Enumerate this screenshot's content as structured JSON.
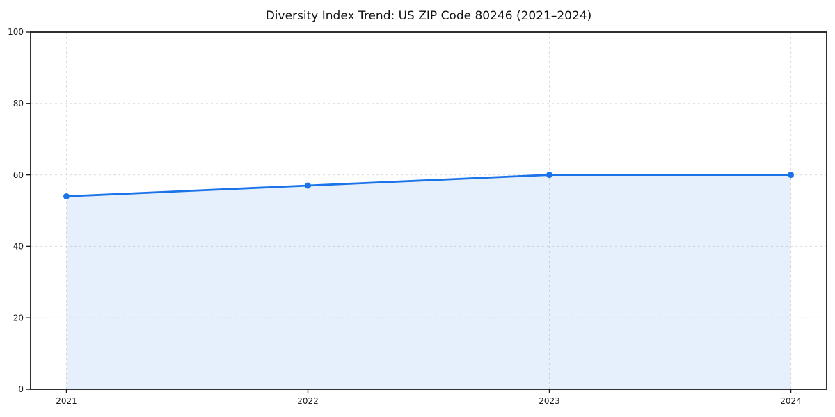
{
  "chart_data": {
    "type": "area",
    "title": "Diversity Index Trend: US ZIP Code 80246 (2021–2024)",
    "xlabel": "",
    "ylabel": "",
    "categories": [
      "2021",
      "2022",
      "2023",
      "2024"
    ],
    "series": [
      {
        "name": "Diversity Index",
        "values": [
          54,
          57,
          60,
          60
        ]
      }
    ],
    "ylim": [
      0,
      100
    ],
    "yticks": [
      0,
      20,
      40,
      60,
      80,
      100
    ],
    "grid": "dashed",
    "legend_position": "none",
    "colors": {
      "line": "#1a73e8",
      "marker": "#1a73e8",
      "fill": "#1a73e8",
      "fill_opacity": "0.11",
      "grid": "#dcdcdc",
      "axis": "#1a1a1a",
      "tick_text": "#1a1a1a",
      "background": "#ffffff"
    }
  }
}
